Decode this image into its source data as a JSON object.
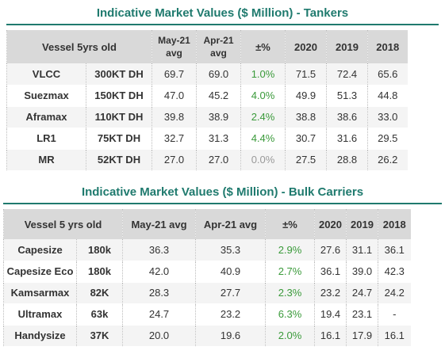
{
  "tankers": {
    "title": "Indicative Market Values ($ Million) - Tankers",
    "header": [
      "Vessel 5yrs old",
      "May-21 avg",
      "Apr-21 avg",
      "±%",
      "2020",
      "2019",
      "2018"
    ],
    "rows": [
      [
        "VLCC",
        "300KT DH",
        "69.7",
        "69.0",
        "1.0%",
        "71.5",
        "72.4",
        "65.6"
      ],
      [
        "Suezmax",
        "150KT DH",
        "47.0",
        "45.2",
        "4.0%",
        "49.9",
        "51.3",
        "44.8"
      ],
      [
        "Aframax",
        "110KT DH",
        "39.8",
        "38.9",
        "2.4%",
        "38.8",
        "38.6",
        "33.0"
      ],
      [
        "LR1",
        "75KT DH",
        "32.7",
        "31.3",
        "4.4%",
        "30.7",
        "31.6",
        "29.5"
      ],
      [
        "MR",
        "52KT DH",
        "27.0",
        "27.0",
        "0.0%",
        "27.5",
        "28.8",
        "26.2"
      ]
    ]
  },
  "bulk": {
    "title": "Indicative Market Values ($ Million) - Bulk Carriers",
    "header": [
      "Vessel 5 yrs old",
      "May-21 avg",
      "Apr-21 avg",
      "±%",
      "2020",
      "2019",
      "2018"
    ],
    "rows": [
      [
        "Capesize",
        "180k",
        "36.3",
        "35.3",
        "2.9%",
        "27.6",
        "31.1",
        "36.1"
      ],
      [
        "Capesize Eco",
        "180k",
        "42.0",
        "40.9",
        "2.7%",
        "36.1",
        "39.0",
        "42.3"
      ],
      [
        "Kamsarmax",
        "82K",
        "28.3",
        "27.7",
        "2.3%",
        "23.2",
        "24.7",
        "24.2"
      ],
      [
        "Ultramax",
        "63k",
        "24.7",
        "23.2",
        "6.3%",
        "19.4",
        "23.1",
        "-"
      ],
      [
        "Handysize",
        "37K",
        "20.0",
        "19.6",
        "2.0%",
        "16.1",
        "17.9",
        "16.1"
      ]
    ]
  }
}
